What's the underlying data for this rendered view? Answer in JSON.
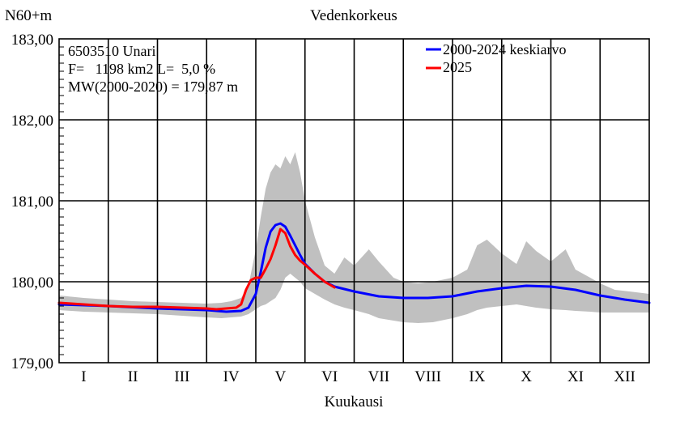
{
  "chart_data": {
    "type": "line",
    "title": "Vedenkorkeus",
    "ylabel": "N60+m",
    "xlabel": "Kuukausi",
    "ylim": [
      179.0,
      183.0
    ],
    "y_ticks": [
      "179,00",
      "180,00",
      "181,00",
      "182,00",
      "183,00"
    ],
    "y_tick_values": [
      179.0,
      180.0,
      181.0,
      182.0,
      183.0
    ],
    "xlim": [
      0,
      12
    ],
    "months": [
      "I",
      "II",
      "III",
      "IV",
      "V",
      "VI",
      "VII",
      "VIII",
      "IX",
      "X",
      "XI",
      "XII"
    ],
    "grid": true,
    "info": {
      "line1": "6503510 Unari",
      "line2": "F=   1198 km2 L=  5,0 %",
      "line3": "MW(2000-2020) = 179,87 m"
    },
    "legend_position": "top-right",
    "colors": {
      "mean": "#0000ff",
      "current": "#ff0000",
      "band": "#c0c0c0"
    },
    "band": {
      "name": "",
      "x": [
        0,
        0.5,
        1,
        1.5,
        2,
        2.5,
        3,
        3.3,
        3.5,
        3.7,
        3.85,
        4.0,
        4.1,
        4.2,
        4.3,
        4.4,
        4.5,
        4.6,
        4.7,
        4.8,
        4.9,
        5.0,
        5.2,
        5.4,
        5.6,
        5.8,
        6.0,
        6.3,
        6.5,
        6.8,
        7.0,
        7.3,
        7.6,
        8.0,
        8.3,
        8.5,
        8.7,
        9.0,
        9.3,
        9.5,
        9.7,
        10.0,
        10.3,
        10.5,
        10.8,
        11.0,
        11.3,
        11.6,
        12.0
      ],
      "upper": [
        179.83,
        179.8,
        179.78,
        179.76,
        179.75,
        179.74,
        179.73,
        179.74,
        179.76,
        179.8,
        179.95,
        180.4,
        180.8,
        181.15,
        181.35,
        181.45,
        181.4,
        181.55,
        181.45,
        181.6,
        181.35,
        181.0,
        180.55,
        180.2,
        180.1,
        180.3,
        180.2,
        180.4,
        180.25,
        180.05,
        180.0,
        179.98,
        180.0,
        180.05,
        180.15,
        180.45,
        180.52,
        180.35,
        180.22,
        180.5,
        180.38,
        180.25,
        180.4,
        180.15,
        180.05,
        179.98,
        179.9,
        179.88,
        179.85
      ],
      "lower": [
        179.65,
        179.63,
        179.62,
        179.61,
        179.6,
        179.58,
        179.56,
        179.55,
        179.56,
        179.57,
        179.6,
        179.66,
        179.7,
        179.72,
        179.76,
        179.8,
        179.9,
        180.05,
        180.1,
        180.05,
        180.0,
        179.92,
        179.85,
        179.78,
        179.72,
        179.68,
        179.65,
        179.6,
        179.55,
        179.52,
        179.5,
        179.49,
        179.5,
        179.55,
        179.6,
        179.65,
        179.68,
        179.7,
        179.72,
        179.7,
        179.68,
        179.66,
        179.65,
        179.64,
        179.63,
        179.62,
        179.62,
        179.62,
        179.62
      ]
    },
    "series": [
      {
        "name": "2000-2024 keskiarvo",
        "color": "#0000ff",
        "x": [
          0,
          1,
          2,
          3,
          3.4,
          3.7,
          3.85,
          4.0,
          4.1,
          4.2,
          4.3,
          4.4,
          4.5,
          4.6,
          4.7,
          4.8,
          4.9,
          5.0,
          5.2,
          5.4,
          5.6,
          6.0,
          6.5,
          7.0,
          7.5,
          8.0,
          8.5,
          9.0,
          9.5,
          10.0,
          10.5,
          11.0,
          11.5,
          12.0
        ],
        "y": [
          179.72,
          179.7,
          179.67,
          179.65,
          179.63,
          179.64,
          179.68,
          179.85,
          180.12,
          180.42,
          180.62,
          180.7,
          180.72,
          180.68,
          180.57,
          180.45,
          180.33,
          180.22,
          180.1,
          180.0,
          179.94,
          179.88,
          179.82,
          179.8,
          179.8,
          179.82,
          179.88,
          179.92,
          179.95,
          179.94,
          179.9,
          179.83,
          179.78,
          179.74
        ]
      },
      {
        "name": "2025",
        "color": "#ff0000",
        "x": [
          0,
          0.5,
          1,
          1.5,
          2,
          2.5,
          3,
          3.2,
          3.4,
          3.6,
          3.7,
          3.8,
          3.9,
          4.0,
          4.1,
          4.2,
          4.3,
          4.4,
          4.5,
          4.6,
          4.7,
          4.8,
          4.9,
          5.0,
          5.2,
          5.4,
          5.6
        ],
        "y": [
          179.74,
          179.72,
          179.7,
          179.69,
          179.69,
          179.68,
          179.67,
          179.66,
          179.67,
          179.68,
          179.72,
          179.9,
          180.02,
          180.05,
          180.05,
          180.16,
          180.28,
          180.45,
          180.65,
          180.6,
          180.44,
          180.33,
          180.26,
          180.21,
          180.1,
          180.0,
          179.93
        ]
      }
    ]
  }
}
